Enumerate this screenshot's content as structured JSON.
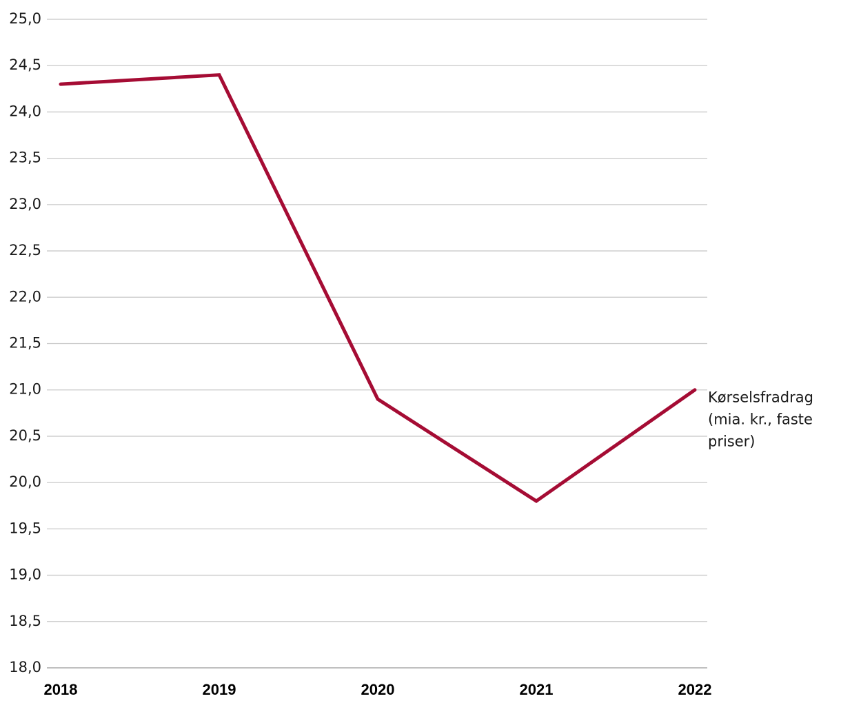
{
  "chart_data": {
    "type": "line",
    "title": "",
    "xlabel": "",
    "ylabel": "",
    "categories": [
      "2018",
      "2019",
      "2020",
      "2021",
      "2022"
    ],
    "series": [
      {
        "name": "Kørselsfradrag (mia. kr., faste priser)",
        "name_lines": [
          "Kørselsfradrag",
          "(mia. kr., faste",
          "priser)"
        ],
        "values": [
          24.3,
          24.4,
          20.9,
          19.8,
          21.0
        ],
        "color": "#a50c34"
      }
    ],
    "ylim": [
      18.0,
      25.0
    ],
    "yticks": [
      18.0,
      18.5,
      19.0,
      19.5,
      20.0,
      20.5,
      21.0,
      21.5,
      22.0,
      22.5,
      23.0,
      23.5,
      24.0,
      24.5,
      25.0
    ],
    "ytick_labels": [
      "18,0",
      "18,5",
      "19,0",
      "19,5",
      "20,0",
      "20,5",
      "21,0",
      "21,5",
      "22,0",
      "22,5",
      "23,0",
      "23,5",
      "24,0",
      "24,5",
      "25,0"
    ],
    "grid": true,
    "legend": "end-of-line label"
  }
}
